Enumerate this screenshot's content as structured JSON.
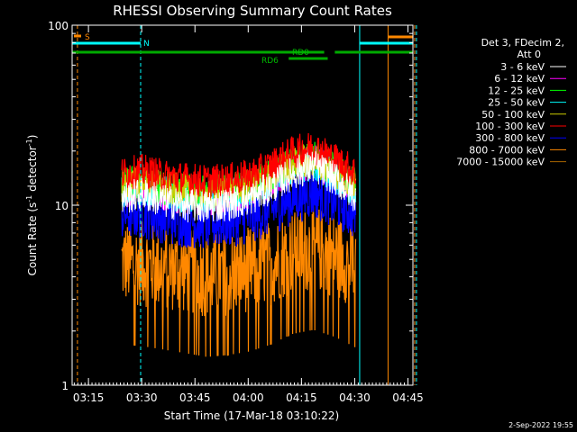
{
  "chart_data": {
    "type": "line",
    "title": "RHESSI Observing Summary Count Rates",
    "xlabel": "Start Time (17-Mar-18 03:10:22)",
    "ylabel": "Count Rate (s",
    "ylabel_sup": "-1",
    "ylabel_tail": " detector",
    "ylabel_sup2": "-1",
    "ylabel_close": ")",
    "y_scale": "log",
    "ylim": [
      1,
      100
    ],
    "xlim_minutes": [
      0,
      96
    ],
    "y_ticks": [
      {
        "value": 1,
        "label": "1"
      },
      {
        "value": 10,
        "label": "10"
      },
      {
        "value": 100,
        "label": "100"
      }
    ],
    "x_ticks": [
      {
        "minute": 4.6,
        "label": "03:15"
      },
      {
        "minute": 19.6,
        "label": "03:30"
      },
      {
        "minute": 34.6,
        "label": "03:45"
      },
      {
        "minute": 49.6,
        "label": "04:00"
      },
      {
        "minute": 64.6,
        "label": "04:15"
      },
      {
        "minute": 79.6,
        "label": "04:30"
      },
      {
        "minute": 94.6,
        "label": "04:45"
      }
    ],
    "legend_header_1": "Det 3, FDecim 2,",
    "legend_header_2": "Att 0",
    "legend_placement": "right",
    "series": [
      {
        "name": "3 - 6 keV",
        "color": "#ffffff",
        "x": [
          14,
          20,
          26,
          32,
          38,
          44,
          50,
          56,
          62,
          68,
          74,
          80
        ],
        "y": [
          11,
          11.5,
          10.5,
          10,
          9.8,
          10.2,
          10.8,
          12.5,
          15,
          16.5,
          14,
          11
        ]
      },
      {
        "name": "6 - 12 keV",
        "color": "#ff00ff",
        "x": [
          14,
          20,
          26,
          32,
          38,
          44,
          50,
          56,
          62,
          68,
          74,
          80
        ],
        "y": [
          12,
          12.5,
          11.5,
          11,
          10.8,
          11.2,
          11.8,
          13.5,
          16,
          17.5,
          15,
          12
        ]
      },
      {
        "name": "12 - 25 keV",
        "color": "#00ff00",
        "x": [
          14,
          20,
          26,
          32,
          38,
          44,
          50,
          56,
          62,
          68,
          74,
          80
        ],
        "y": [
          13,
          13.5,
          12.5,
          12,
          11.8,
          12.2,
          12.8,
          14.5,
          17,
          18.5,
          16,
          13
        ]
      },
      {
        "name": "25 - 50 keV",
        "color": "#00ffff",
        "x": [
          14,
          20,
          26,
          32,
          38,
          44,
          50,
          56,
          62,
          68,
          74,
          80
        ],
        "y": [
          12,
          12.5,
          11.8,
          11.2,
          11,
          11.4,
          12,
          13.5,
          16,
          17,
          14.5,
          12
        ]
      },
      {
        "name": "50 - 100 keV",
        "color": "#cccc00",
        "x": [
          14,
          20,
          26,
          32,
          38,
          44,
          50,
          56,
          62,
          68,
          74,
          80
        ],
        "y": [
          13,
          13.5,
          12.5,
          12,
          11.5,
          12,
          12.8,
          14.5,
          17,
          18,
          15.5,
          13
        ]
      },
      {
        "name": "100 - 300 keV",
        "color": "#ff0000",
        "x": [
          14,
          20,
          26,
          32,
          38,
          44,
          50,
          56,
          62,
          68,
          74,
          80
        ],
        "y": [
          15,
          15.5,
          14.5,
          14,
          13.5,
          13.8,
          14.5,
          16.5,
          19.5,
          21,
          18,
          15
        ]
      },
      {
        "name": "300 - 800 keV",
        "color": "#0000ff",
        "x": [
          14,
          20,
          26,
          32,
          38,
          44,
          50,
          56,
          62,
          68,
          74,
          80
        ],
        "y": [
          9,
          9.2,
          8.6,
          8.2,
          8,
          8.2,
          8.6,
          9.5,
          11,
          12,
          10.5,
          9
        ]
      },
      {
        "name": "800 - 7000 keV",
        "color": "#ff8800",
        "x": [
          14,
          20,
          26,
          32,
          38,
          44,
          50,
          56,
          62,
          68,
          74,
          80
        ],
        "y": [
          4.8,
          4.7,
          4.5,
          4.3,
          4.1,
          4.2,
          4.4,
          4.8,
          5.5,
          5.8,
          5.3,
          4.6
        ]
      },
      {
        "name": "7000 - 15000 keV",
        "color": "#aa6600",
        "x": [],
        "y": []
      }
    ],
    "annotations": {
      "saa_label": "S",
      "night_label": "N",
      "decim_label_1": "RD0",
      "decim_label_2": "RD6"
    },
    "events": {
      "saa_start_minute": 1.5,
      "saa_end_minute": 96.5,
      "night_start_minute": 19.3,
      "night_end_minute": 97,
      "day_start_minute": 81,
      "att_start_minute": 89
    }
  },
  "footer": {
    "date_stamp": "2-Sep-2022 19:55"
  }
}
